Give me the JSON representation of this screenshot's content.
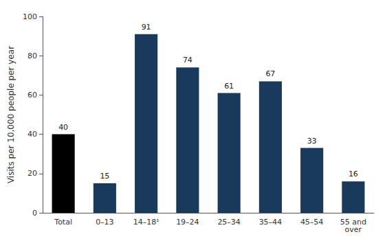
{
  "chart_data": {
    "type": "bar",
    "categories": [
      "Total",
      "0–13",
      "14–18¹",
      "19–24",
      "25–34",
      "35–44",
      "45–54",
      "55 and\nover"
    ],
    "values": [
      40,
      15,
      91,
      74,
      61,
      67,
      33,
      16
    ],
    "colors": [
      "#000000",
      "#1a3a5c",
      "#1a3a5c",
      "#1a3a5c",
      "#1a3a5c",
      "#1a3a5c",
      "#1a3a5c",
      "#1a3a5c"
    ],
    "ylabel": "Visits per 10,000 people per year",
    "ylim": [
      0,
      100
    ],
    "yticks": [
      0,
      20,
      40,
      60,
      80,
      100
    ],
    "grid": false,
    "data_labels": true
  }
}
